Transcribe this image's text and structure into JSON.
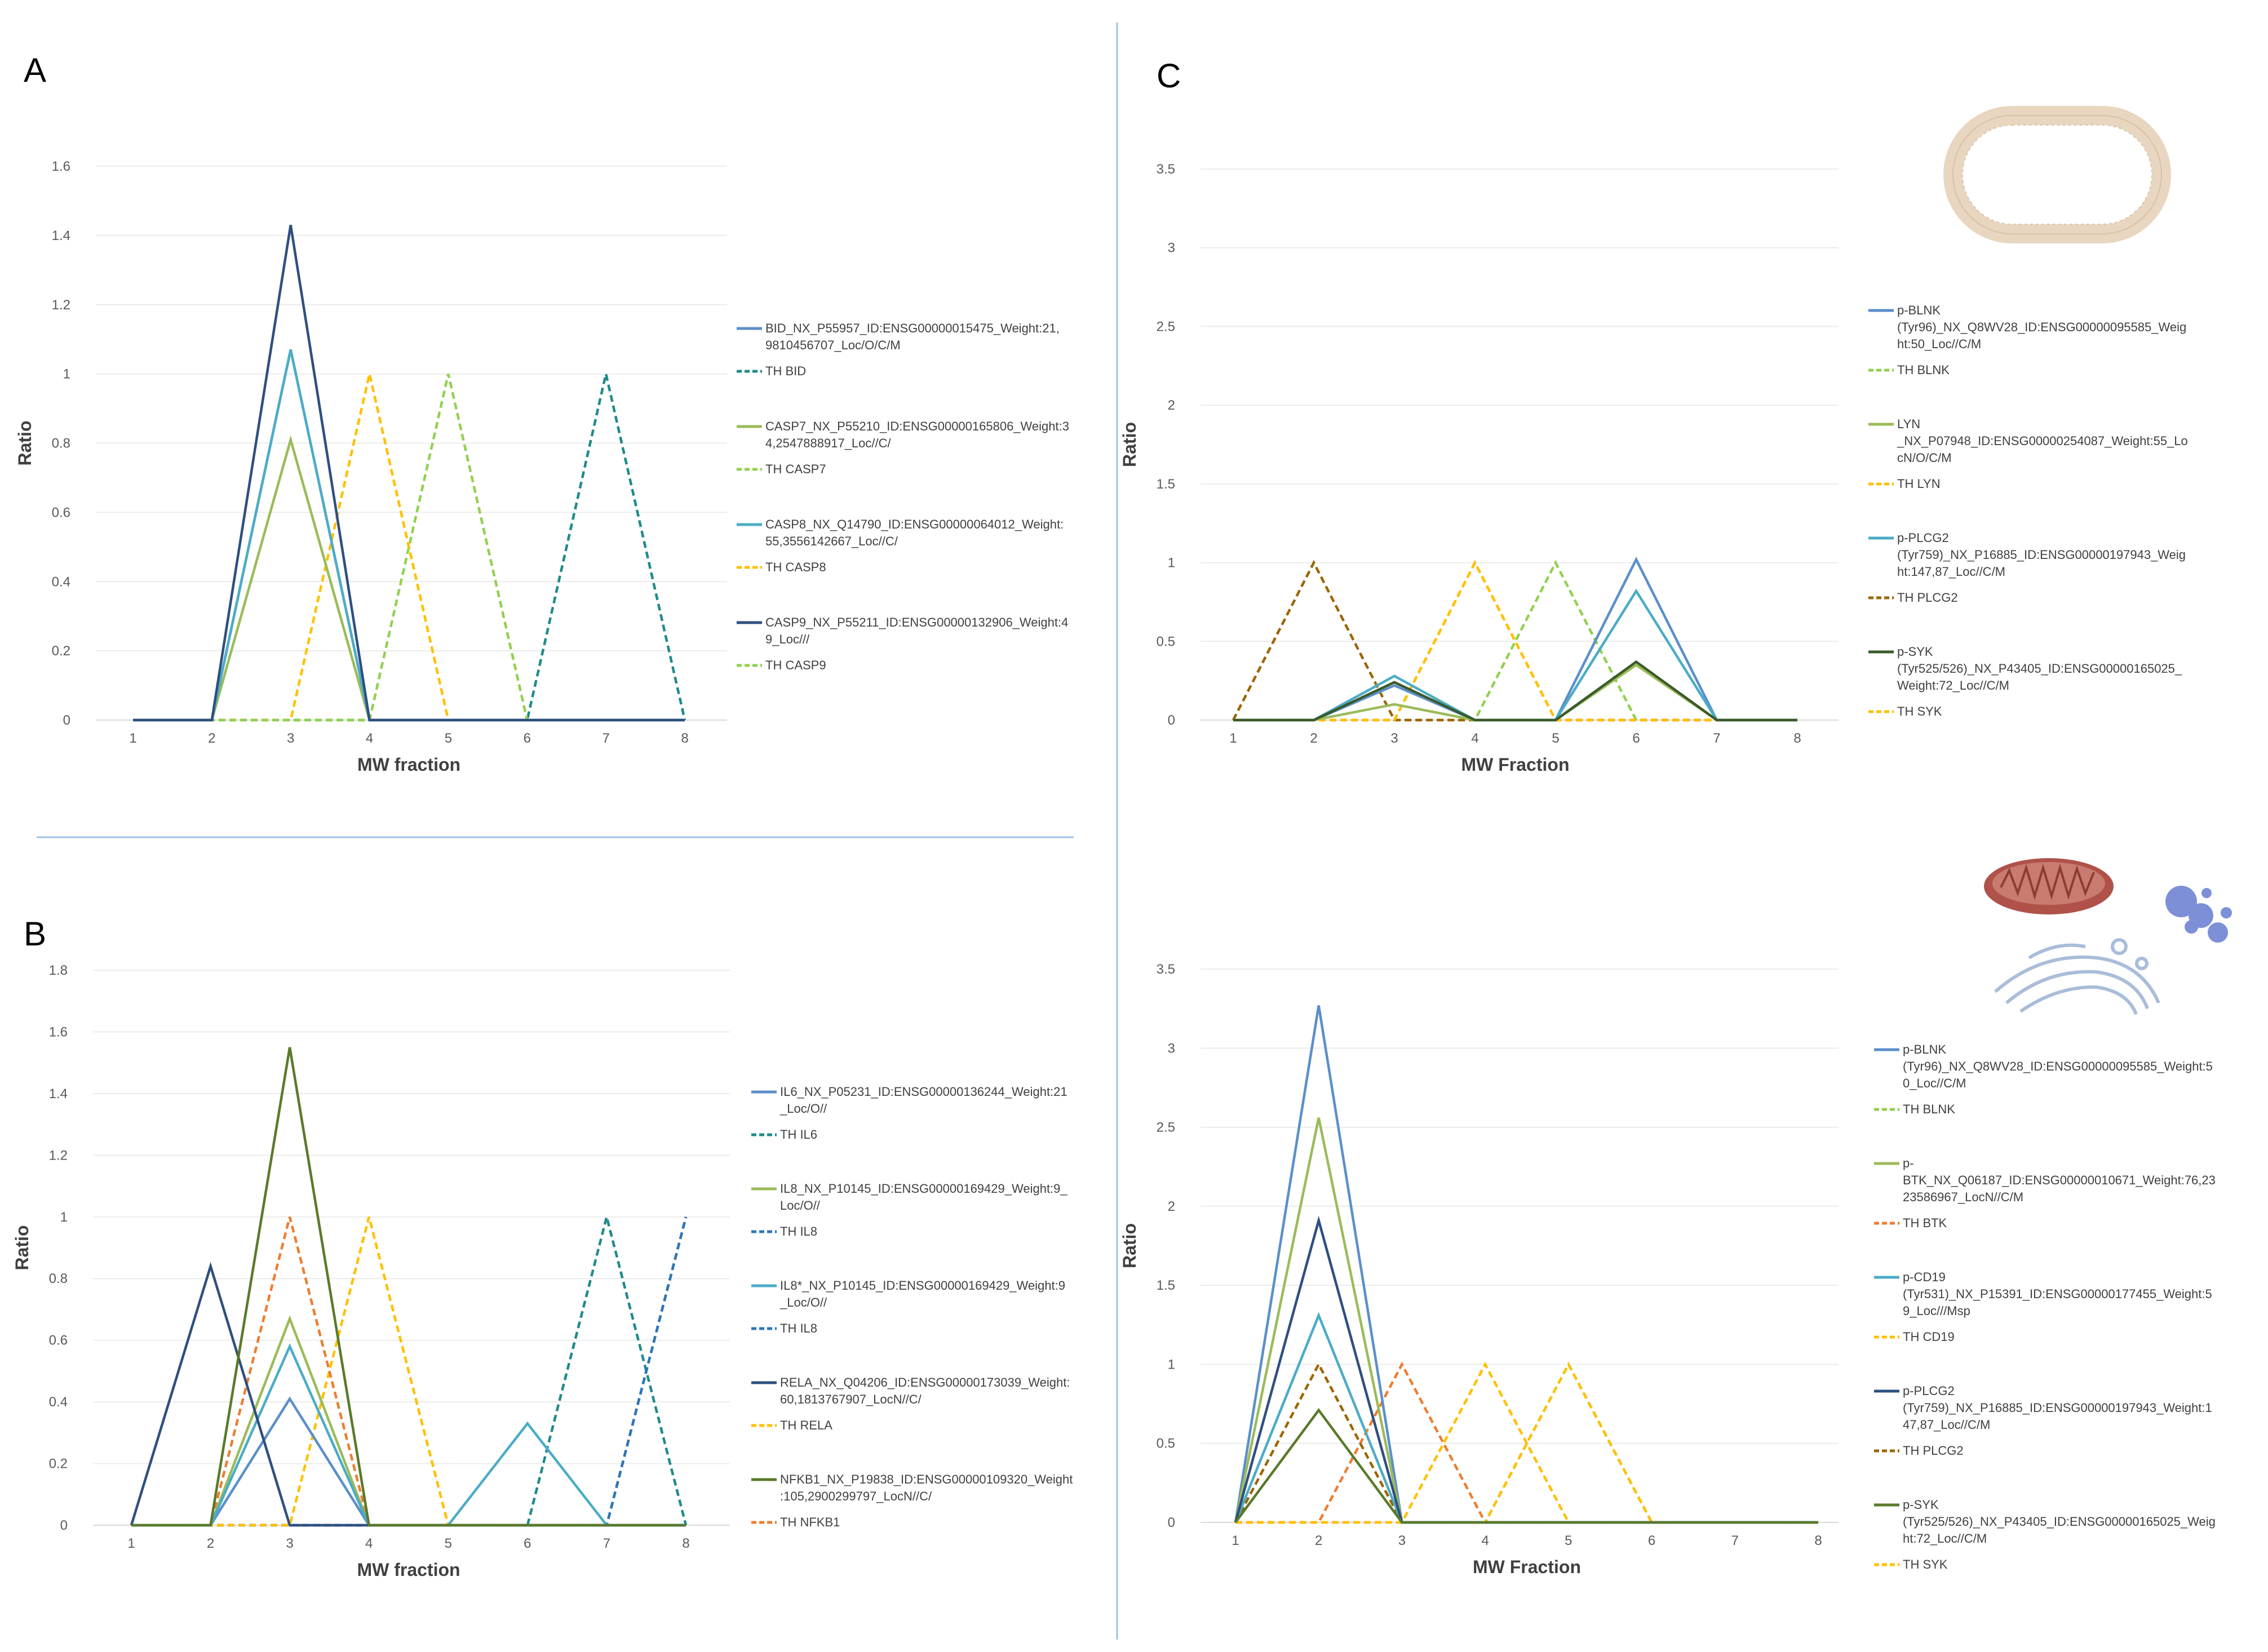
{
  "chart_data": [
    {
      "panel": "A",
      "type": "line",
      "xlabel": "MW fraction",
      "ylabel": "Ratio",
      "x": [
        1,
        2,
        3,
        4,
        5,
        6,
        7,
        8
      ],
      "ylim": [
        0,
        1.6
      ],
      "yticks": [
        "0",
        "0.2",
        "0.4",
        "0.6",
        "0.8",
        "1",
        "1.2",
        "1.4",
        "1.6"
      ],
      "series": [
        {
          "name": "BID_NX_P55957_ID:ENSG00000015475_Weight:21,9810456707_Loc/O/C/M",
          "legend_lines": [
            "BID_NX_P55957_ID:ENSG00000015475_Weight:21,",
            "9810456707_Loc/O/C/M"
          ],
          "color": "#5b8fc9",
          "dash": false,
          "values": [
            0,
            0,
            1.07,
            0,
            0,
            0,
            0,
            0
          ]
        },
        {
          "name": "TH BID",
          "legend_lines": [
            "TH BID"
          ],
          "color": "#1f8a8a",
          "dash": true,
          "values": [
            0,
            0,
            0,
            0,
            0,
            0,
            1,
            0
          ]
        },
        {
          "name": "CASP7_NX_P55210_ID:ENSG00000165806_Weight:34,2547888917_Loc//C/",
          "legend_lines": [
            "CASP7_NX_P55210_ID:ENSG00000165806_Weight:3",
            "4,2547888917_Loc//C/"
          ],
          "color": "#9bbb59",
          "dash": false,
          "values": [
            0,
            0,
            0.81,
            0,
            0,
            0,
            0,
            0
          ]
        },
        {
          "name": "TH CASP7",
          "legend_lines": [
            "TH CASP7"
          ],
          "color": "#92d050",
          "dash": true,
          "values": [
            0,
            0,
            0,
            0,
            1,
            0,
            0,
            0
          ]
        },
        {
          "name": "CASP8_NX_Q14790_ID:ENSG00000064012_Weight:55,3556142667_Loc//C/",
          "legend_lines": [
            "CASP8_NX_Q14790_ID:ENSG00000064012_Weight:",
            "55,3556142667_Loc//C/"
          ],
          "color": "#4bacc6",
          "dash": false,
          "values": [
            0,
            0,
            1.07,
            0,
            0,
            0,
            0,
            0
          ]
        },
        {
          "name": "TH CASP8",
          "legend_lines": [
            "TH CASP8"
          ],
          "color": "#ffc000",
          "dash": true,
          "values": [
            0,
            0,
            0,
            1,
            0,
            0,
            0,
            0
          ]
        },
        {
          "name": "CASP9_NX_P55211_ID:ENSG00000132906_Weight:49_Loc///",
          "legend_lines": [
            "CASP9_NX_P55211_ID:ENSG00000132906_Weight:4",
            "9_Loc///"
          ],
          "color": "#2f4f7f",
          "dash": false,
          "values": [
            0,
            0,
            1.43,
            0,
            0,
            0,
            0,
            0
          ]
        },
        {
          "name": "TH CASP9",
          "legend_lines": [
            "TH CASP9"
          ],
          "color": "#92d050",
          "dash": true,
          "values": [
            0,
            0,
            0,
            0,
            0,
            0,
            0,
            0
          ]
        }
      ]
    },
    {
      "panel": "B",
      "type": "line",
      "xlabel": "MW fraction",
      "ylabel": "Ratio",
      "x": [
        1,
        2,
        3,
        4,
        5,
        6,
        7,
        8
      ],
      "ylim": [
        0,
        1.8
      ],
      "yticks": [
        "0",
        "0.2",
        "0.4",
        "0.6",
        "0.8",
        "1",
        "1.2",
        "1.4",
        "1.6",
        "1.8"
      ],
      "series": [
        {
          "name": "IL6_NX_P05231_ID:ENSG00000136244_Weight:21_Loc/O//",
          "legend_lines": [
            "IL6_NX_P05231_ID:ENSG00000136244_Weight:21",
            "_Loc/O//"
          ],
          "color": "#5b8fc9",
          "dash": false,
          "values": [
            0,
            0,
            0.41,
            0,
            0,
            0,
            0,
            0
          ]
        },
        {
          "name": "TH IL6",
          "legend_lines": [
            "TH IL6"
          ],
          "color": "#1f8a8a",
          "dash": true,
          "values": [
            0,
            0,
            0,
            0,
            0,
            0,
            1,
            0
          ]
        },
        {
          "name": "IL8_NX_P10145_ID:ENSG00000169429_Weight:9_Loc/O//",
          "legend_lines": [
            "IL8_NX_P10145_ID:ENSG00000169429_Weight:9_",
            "Loc/O//"
          ],
          "color": "#9bbb59",
          "dash": false,
          "values": [
            0,
            0,
            0.67,
            0,
            0,
            0,
            0,
            0
          ]
        },
        {
          "name": "TH IL8",
          "legend_lines": [
            "TH IL8"
          ],
          "color": "#2e75b6",
          "dash": true,
          "values": [
            0,
            0,
            0,
            0,
            0,
            0,
            0,
            1
          ]
        },
        {
          "name": "IL8*_NX_P10145_ID:ENSG00000169429_Weight:9_Loc/O//",
          "legend_lines": [
            "IL8*_NX_P10145_ID:ENSG00000169429_Weight:9",
            "_Loc/O//"
          ],
          "color": "#4bacc6",
          "dash": false,
          "values": [
            0,
            0,
            0.58,
            0,
            0,
            0.33,
            0,
            0
          ]
        },
        {
          "name": "TH IL8",
          "legend_lines": [
            "TH IL8"
          ],
          "color": "#2e75b6",
          "dash": true,
          "values": [
            0,
            0,
            0,
            0,
            0,
            0,
            0,
            1
          ]
        },
        {
          "name": "RELA_NX_Q04206_ID:ENSG00000173039_Weight:60,1813767907_LocN//C/",
          "legend_lines": [
            "RELA_NX_Q04206_ID:ENSG00000173039_Weight:",
            "60,1813767907_LocN//C/"
          ],
          "color": "#2f4f7f",
          "dash": false,
          "values": [
            0,
            0.84,
            0,
            0,
            0,
            0,
            0,
            0
          ]
        },
        {
          "name": "TH RELA",
          "legend_lines": [
            "TH RELA"
          ],
          "color": "#ffc000",
          "dash": true,
          "values": [
            0,
            0,
            0,
            1,
            0,
            0,
            0,
            0
          ]
        },
        {
          "name": "NFKB1_NX_P19838_ID:ENSG00000109320_Weight:105,2900299797_LocN//C/",
          "legend_lines": [
            "NFKB1_NX_P19838_ID:ENSG00000109320_Weight",
            ":105,2900299797_LocN//C/"
          ],
          "color": "#5a7a2a",
          "dash": false,
          "values": [
            0,
            0,
            1.55,
            0,
            0,
            0,
            0,
            0
          ]
        },
        {
          "name": "TH NFKB1",
          "legend_lines": [
            "TH NFKB1"
          ],
          "color": "#ed7d31",
          "dash": true,
          "values": [
            0,
            0,
            1,
            0,
            0,
            0,
            0,
            0
          ]
        }
      ]
    },
    {
      "panel": "C-top",
      "type": "line",
      "xlabel": "MW Fraction",
      "ylabel": "Ratio",
      "x": [
        1,
        2,
        3,
        4,
        5,
        6,
        7,
        8
      ],
      "ylim": [
        0,
        3.5
      ],
      "yticks": [
        "0",
        "0.5",
        "1",
        "1.5",
        "2",
        "2.5",
        "3",
        "3.5"
      ],
      "series": [
        {
          "name": "p-BLNK (Tyr96)_NX_Q8WV28_ID:ENSG00000095585_Weight:50_Loc//C/M",
          "legend_lines": [
            "p-BLNK",
            "(Tyr96)_NX_Q8WV28_ID:ENSG00000095585_Weig",
            "ht:50_Loc//C/M"
          ],
          "color": "#5b8fc9",
          "dash": false,
          "values": [
            0,
            0,
            0.22,
            0,
            0,
            1.02,
            0,
            0
          ]
        },
        {
          "name": "TH BLNK",
          "legend_lines": [
            "TH BLNK"
          ],
          "color": "#92d050",
          "dash": true,
          "values": [
            0,
            0,
            0,
            0,
            1,
            0,
            0,
            0
          ]
        },
        {
          "name": "LYN_NX_P07948_ID:ENSG00000254087_Weight:55_LocN/O/C/M",
          "legend_lines": [
            "LYN",
            "_NX_P07948_ID:ENSG00000254087_Weight:55_Lo",
            "cN/O/C/M"
          ],
          "color": "#9bbb59",
          "dash": false,
          "values": [
            0,
            0,
            0.1,
            0,
            0,
            0.35,
            0,
            0
          ]
        },
        {
          "name": "TH LYN",
          "legend_lines": [
            "TH LYN"
          ],
          "color": "#ffc000",
          "dash": true,
          "values": [
            0,
            0,
            0,
            1,
            0,
            0,
            0,
            0
          ]
        },
        {
          "name": "p-PLCG2 (Tyr759)_NX_P16885_ID:ENSG00000197943_Weight:147,87_Loc//C/M",
          "legend_lines": [
            "p-PLCG2",
            "(Tyr759)_NX_P16885_ID:ENSG00000197943_Weig",
            "ht:147,87_Loc//C/M"
          ],
          "color": "#4bacc6",
          "dash": false,
          "values": [
            0,
            0,
            0.28,
            0,
            0,
            0.82,
            0,
            0
          ]
        },
        {
          "name": "TH PLCG2",
          "legend_lines": [
            "TH PLCG2"
          ],
          "color": "#9c6500",
          "dash": true,
          "values": [
            0,
            1,
            0,
            0,
            0,
            0,
            0,
            0
          ]
        },
        {
          "name": "p-SYK (Tyr525/526)_NX_P43405_ID:ENSG00000165025_Weight:72_Loc//C/M",
          "legend_lines": [
            "p-SYK",
            "(Tyr525/526)_NX_P43405_ID:ENSG00000165025_",
            "Weight:72_Loc//C/M"
          ],
          "color": "#3a5a2a",
          "dash": false,
          "values": [
            0,
            0,
            0.24,
            0,
            0,
            0.37,
            0,
            0
          ]
        },
        {
          "name": "TH SYK",
          "legend_lines": [
            "TH SYK"
          ],
          "color": "#ffc000",
          "dash": true,
          "values": [
            0,
            0,
            0,
            1,
            0,
            0,
            0,
            0
          ]
        }
      ]
    },
    {
      "panel": "C-bottom",
      "type": "line",
      "xlabel": "MW Fraction",
      "ylabel": "Ratio",
      "x": [
        1,
        2,
        3,
        4,
        5,
        6,
        7,
        8
      ],
      "ylim": [
        0,
        3.5
      ],
      "yticks": [
        "0",
        "0.5",
        "1",
        "1.5",
        "2",
        "2.5",
        "3",
        "3.5"
      ],
      "series": [
        {
          "name": "p-BLNK (Tyr96)_NX_Q8WV28_ID:ENSG00000095585_Weight:50_Loc//C/M",
          "legend_lines": [
            "p-BLNK",
            "(Tyr96)_NX_Q8WV28_ID:ENSG00000095585_Weight:5",
            "0_Loc//C/M"
          ],
          "color": "#5b8fc9",
          "dash": false,
          "values": [
            0,
            3.27,
            0,
            0,
            0,
            0,
            0,
            0
          ]
        },
        {
          "name": "TH BLNK",
          "legend_lines": [
            "TH BLNK"
          ],
          "color": "#92d050",
          "dash": true,
          "values": [
            0,
            0,
            0,
            0,
            1,
            0,
            0,
            0
          ]
        },
        {
          "name": "p-BTK_NX_Q06187_ID:ENSG00000010671_Weight:76,2323586967_LocN//C/M",
          "legend_lines": [
            "p-",
            "BTK_NX_Q06187_ID:ENSG00000010671_Weight:76,23",
            "23586967_LocN//C/M"
          ],
          "color": "#9bbb59",
          "dash": false,
          "values": [
            0,
            2.56,
            0,
            0,
            0,
            0,
            0,
            0
          ]
        },
        {
          "name": "TH BTK",
          "legend_lines": [
            "TH BTK"
          ],
          "color": "#ed7d31",
          "dash": true,
          "values": [
            0,
            0,
            1,
            0,
            0,
            0,
            0,
            0
          ]
        },
        {
          "name": "p-CD19 (Tyr531)_NX_P15391_ID:ENSG00000177455_Weight:59_Loc///Msp",
          "legend_lines": [
            "p-CD19",
            "(Tyr531)_NX_P15391_ID:ENSG00000177455_Weight:5",
            "9_Loc///Msp"
          ],
          "color": "#4bacc6",
          "dash": false,
          "values": [
            0,
            1.31,
            0,
            0,
            0,
            0,
            0,
            0
          ]
        },
        {
          "name": "TH CD19",
          "legend_lines": [
            "TH CD19"
          ],
          "color": "#ffc000",
          "dash": true,
          "values": [
            0,
            0,
            0,
            1,
            0,
            0,
            0,
            0
          ]
        },
        {
          "name": "p-PLCG2 (Tyr759)_NX_P16885_ID:ENSG00000197943_Weight:147,87_Loc//C/M",
          "legend_lines": [
            "p-PLCG2",
            "(Tyr759)_NX_P16885_ID:ENSG00000197943_Weight:1",
            "47,87_Loc//C/M"
          ],
          "color": "#2f4f7f",
          "dash": false,
          "values": [
            0,
            1.91,
            0,
            0,
            0,
            0,
            0,
            0
          ]
        },
        {
          "name": "TH PLCG2",
          "legend_lines": [
            "TH PLCG2"
          ],
          "color": "#9c6500",
          "dash": true,
          "values": [
            0,
            1,
            0,
            0,
            0,
            0,
            0,
            0
          ]
        },
        {
          "name": "p-SYK (Tyr525/526)_NX_P43405_ID:ENSG00000165025_Weight:72_Loc//C/M",
          "legend_lines": [
            "p-SYK",
            "(Tyr525/526)_NX_P43405_ID:ENSG00000165025_Weig",
            "ht:72_Loc//C/M"
          ],
          "color": "#5a7a2a",
          "dash": false,
          "values": [
            0,
            0.71,
            0,
            0,
            0,
            0,
            0,
            0
          ]
        },
        {
          "name": "TH SYK",
          "legend_lines": [
            "TH SYK"
          ],
          "color": "#ffc000",
          "dash": true,
          "values": [
            0,
            0,
            0,
            0,
            1,
            0,
            0,
            0
          ]
        }
      ]
    }
  ]
}
